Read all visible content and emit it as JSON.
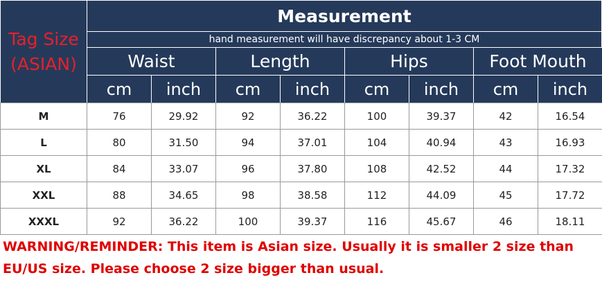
{
  "header": {
    "tag_size": [
      "Tag Size",
      "(ASIAN)"
    ],
    "title": "Measurement",
    "note": "hand measurement will have discrepancy about 1-3 CM",
    "groups": [
      "Waist",
      "Length",
      "Hips",
      "Foot Mouth"
    ],
    "units": [
      "cm",
      "inch",
      "cm",
      "inch",
      "cm",
      "inch",
      "cm",
      "inch"
    ]
  },
  "table": {
    "rows": [
      {
        "size": "M",
        "values": [
          "76",
          "29.92",
          "92",
          "36.22",
          "100",
          "39.37",
          "42",
          "16.54"
        ]
      },
      {
        "size": "L",
        "values": [
          "80",
          "31.50",
          "94",
          "37.01",
          "104",
          "40.94",
          "43",
          "16.93"
        ]
      },
      {
        "size": "XL",
        "values": [
          "84",
          "33.07",
          "96",
          "37.80",
          "108",
          "42.52",
          "44",
          "17.32"
        ]
      },
      {
        "size": "XXL",
        "values": [
          "88",
          "34.65",
          "98",
          "38.58",
          "112",
          "44.09",
          "45",
          "17.72"
        ]
      },
      {
        "size": "XXXL",
        "values": [
          "92",
          "36.22",
          "100",
          "39.37",
          "116",
          "45.67",
          "46",
          "18.11"
        ]
      }
    ]
  },
  "warning": "WARNING/REMINDER: This item is Asian size. Usually it is smaller 2 size than EU/US size. Please choose 2 size bigger than usual."
}
